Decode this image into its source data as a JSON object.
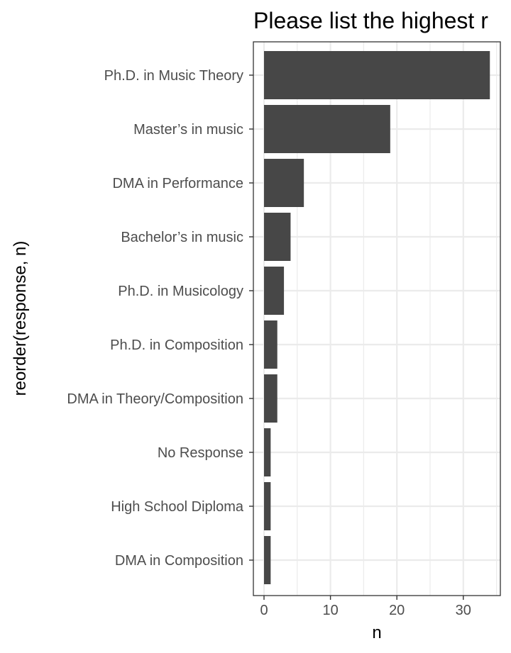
{
  "chart_data": {
    "type": "bar",
    "orientation": "horizontal",
    "title": "Please list the highest r",
    "xlabel": "n",
    "ylabel": "reorder(response, n)",
    "categories": [
      "Ph.D. in Music Theory",
      "Master’s in music",
      "DMA in Performance",
      "Bachelor’s in music",
      "Ph.D. in Musicology",
      "Ph.D. in Composition",
      "DMA in Theory/Composition",
      "No Response",
      "High School Diploma",
      "DMA in Composition"
    ],
    "values": [
      34,
      19,
      6,
      4,
      3,
      2,
      2,
      1,
      1,
      1
    ],
    "xlim": [
      0,
      35.9
    ],
    "xticks": [
      0,
      10,
      20,
      30
    ],
    "grid": true,
    "colors": {
      "bar": "#474747",
      "grid": "#ebebeb",
      "panel_border": "#333333",
      "axis_text": "#4d4d4d"
    }
  }
}
